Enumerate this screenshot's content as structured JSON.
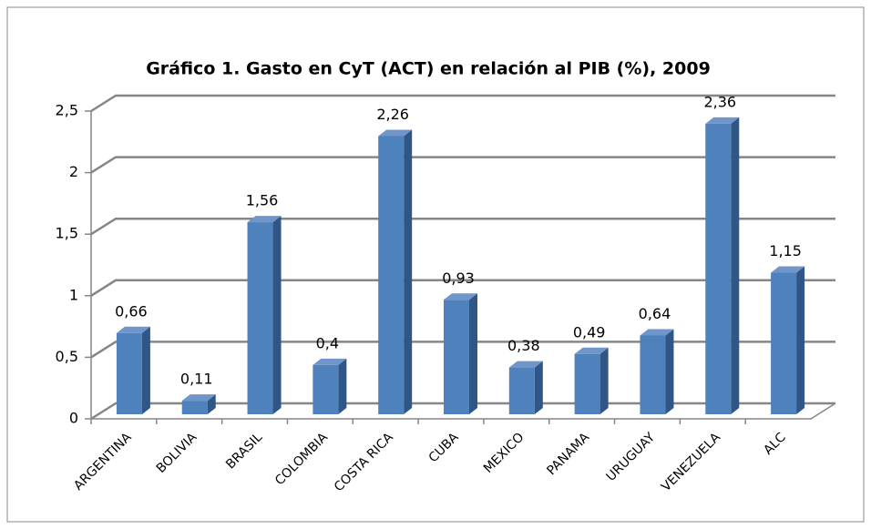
{
  "chart_data": {
    "type": "bar",
    "title": "Gráfico 1. Gasto en CyT (ACT) en relación al PIB (%), 2009",
    "categories": [
      "ARGENTINA",
      "BOLIVIA",
      "BRASIL",
      "COLOMBIA",
      "COSTA RICA",
      "CUBA",
      "MEXICO",
      "PANAMA",
      "URUGUAY",
      "VENEZUELA",
      "ALC"
    ],
    "values": [
      0.66,
      0.11,
      1.56,
      0.4,
      2.26,
      0.93,
      0.38,
      0.49,
      0.64,
      2.36,
      1.15
    ],
    "value_labels": [
      "0,66",
      "0,11",
      "1,56",
      "0,4",
      "2,26",
      "0,93",
      "0,38",
      "0,49",
      "0,64",
      "2,36",
      "1,15"
    ],
    "color": "#4f81bd",
    "ylim": [
      0,
      2.5
    ],
    "yticks": [
      0,
      {
        "value": 0.5,
        "label": "0,5"
      },
      1,
      {
        "value": 1.5,
        "label": "1,5"
      },
      2,
      {
        "value": 2.5,
        "label": "2,5"
      }
    ],
    "grid": true
  }
}
